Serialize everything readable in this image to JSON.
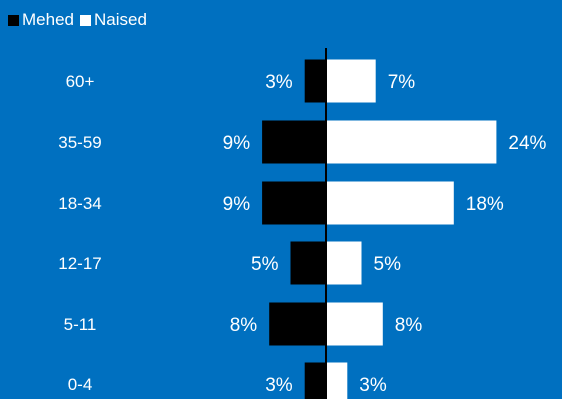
{
  "chart_data": {
    "type": "bar",
    "orientation": "horizontal-diverging",
    "categories": [
      "60+",
      "35-59",
      "18-34",
      "12-17",
      "5-11",
      "0-4"
    ],
    "series": [
      {
        "name": "Mehed",
        "values": [
          3,
          9,
          9,
          5,
          8,
          3
        ],
        "color": "#000000",
        "direction": "left"
      },
      {
        "name": "Naised",
        "values": [
          7,
          24,
          18,
          5,
          8,
          3
        ],
        "color": "#ffffff",
        "direction": "right"
      }
    ],
    "value_suffix": "%",
    "legend_position": "top-left",
    "grid": false,
    "axis_line_color": "#000000",
    "background": "#0070c0",
    "label_color": "#ffffff"
  }
}
